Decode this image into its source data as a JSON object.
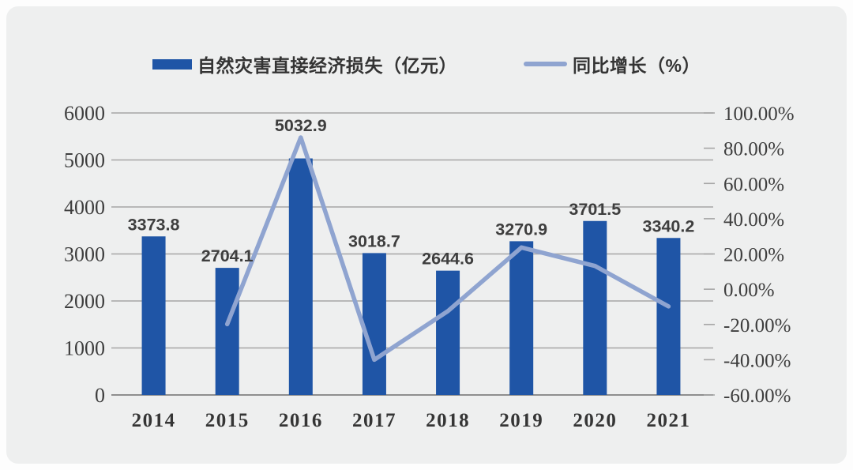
{
  "page": {
    "background": "#FDFDFD",
    "card_background": "#EEEFEF"
  },
  "legend": {
    "items": [
      {
        "label": "自然灾害直接经济损失（亿元）",
        "marker": "bar-swatch",
        "color": "#1F55A6"
      },
      {
        "label": "同比增长（%）",
        "marker": "line-swatch",
        "color": "#8FA4D0"
      }
    ]
  },
  "chart_data": {
    "type": "bar+line combo",
    "categories": [
      "2014",
      "2015",
      "2016",
      "2017",
      "2018",
      "2019",
      "2020",
      "2021"
    ],
    "series": [
      {
        "name": "自然灾害直接经济损失（亿元）",
        "type": "bar",
        "axis": "left",
        "color": "#1F55A6",
        "values": [
          3373.8,
          2704.1,
          5032.9,
          3018.7,
          2644.6,
          3270.9,
          3701.5,
          3340.2
        ],
        "data_labels": [
          "3373.8",
          "2704.1",
          "5032.9",
          "3018.7",
          "2644.6",
          "3270.9",
          "3701.5",
          "3340.2"
        ]
      },
      {
        "name": "同比增长（%）",
        "type": "line",
        "axis": "right",
        "color": "#8FA4D0",
        "values": [
          null,
          -19.85,
          86.12,
          -40.02,
          -12.39,
          23.68,
          13.17,
          -9.76
        ]
      }
    ],
    "left_axis": {
      "min": 0,
      "max": 6000,
      "step": 1000,
      "ticks": [
        "6000",
        "5000",
        "4000",
        "3000",
        "2000",
        "1000",
        "0"
      ]
    },
    "right_axis": {
      "min": -60,
      "max": 100,
      "step": 20,
      "ticks": [
        "100.00%",
        "80.00%",
        "60.00%",
        "40.00%",
        "20.00%",
        "0.00%",
        "-20.00%",
        "-40.00%",
        "-60.00%"
      ]
    },
    "grid": true,
    "legend_position": "top",
    "title": ""
  },
  "style": {
    "gridline_color": "#A6A6A6",
    "baseline_color": "#8E8E8E"
  }
}
